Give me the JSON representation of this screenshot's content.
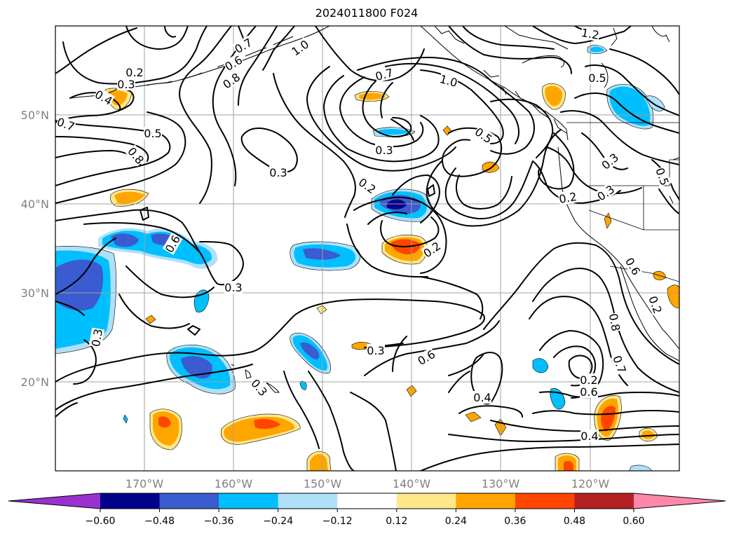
{
  "title": "2024011800 F024",
  "map": {
    "lon_range": [
      -180,
      -110
    ],
    "lat_range": [
      10,
      60
    ],
    "lat_ticks": [
      "50°N",
      "40°N",
      "30°N",
      "20°N"
    ],
    "lon_ticks": [
      "170°W",
      "160°W",
      "150°W",
      "140°W",
      "130°W",
      "120°W"
    ],
    "grid": true
  },
  "colorbar": {
    "ticks": [
      "−0.60",
      "−0.48",
      "−0.36",
      "−0.24",
      "−0.12",
      "0.12",
      "0.24",
      "0.36",
      "0.48",
      "0.60"
    ],
    "colors": [
      "#9932cc",
      "#00008b",
      "#3b5bd0",
      "#00bfff",
      "#afe0f8",
      "#ffffff",
      "#ffe88a",
      "#ffa500",
      "#ff4500",
      "#b22222",
      "#ff88aa"
    ],
    "extend": "both",
    "orientation": "horizontal"
  },
  "contour_labels": [
    "0.2",
    "0.3",
    "0.4",
    "0.5",
    "0.6",
    "0.7",
    "0.8",
    "1.0",
    "1.2"
  ],
  "label_instances": [
    "0.2",
    "0.3",
    "0.4",
    "0.7",
    "0.5",
    "0.8",
    "0.6",
    "0.3",
    "0.7",
    "1.2",
    "0.6",
    "0.8",
    "1.0",
    "0.7",
    "1.0",
    "0.5",
    "0.3",
    "0.5",
    "0.2",
    "0.2",
    "0.2",
    "0.3",
    "0.3",
    "0.6",
    "0.4",
    "0.3",
    "0.3",
    "0.5",
    "0.6",
    "0.8",
    "0.7",
    "0.2",
    "0.6",
    "0.4",
    "0.3",
    "0.2",
    "0.3"
  ]
}
